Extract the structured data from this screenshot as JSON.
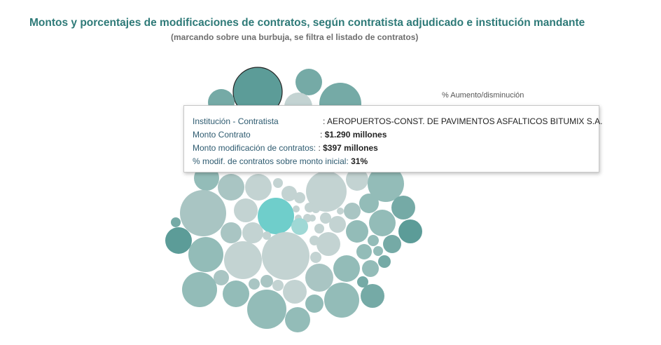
{
  "title": "Montos y porcentajes de modificaciones de contratos, según contratista adjudicado e institución mandante",
  "subtitle": "(marcando sobre una burbuja, se filtra el listado de contratos)",
  "legend": {
    "title": "% Aumento/disminución"
  },
  "colors": {
    "teal_dark": "#5c9c98",
    "teal": "#75aaa6",
    "teal_mid": "#93bcb8",
    "gray_teal": "#a9c5c3",
    "gray_light": "#c3d3d2",
    "highlight": "#6fcecb",
    "highlight_light": "#9fd8d5",
    "title": "#2e7a78"
  },
  "tooltip": {
    "row1_label": "Institución - Contratista",
    "row1_sep": ":",
    "row1_value": "AEROPUERTOS-CONST. DE PAVIMENTOS ASFALTICOS BITUMIX S.A.",
    "row2_label": "Monto Contrato",
    "row2_sep": ":",
    "row2_value": "$1.290 millones",
    "row3_label": "Monto modificación de contratos:",
    "row3_sep": ":",
    "row3_value": "$397 millones",
    "row4_label": "% modif. de contratos sobre monto inicial:",
    "row4_value": "31%"
  },
  "chart_data": {
    "type": "bubble",
    "selected": {
      "label": "AEROPUERTOS-CONST. DE PAVIMENTOS ASFALTICOS BITUMIX S.A.",
      "monto_contrato_millones": 1290,
      "monto_modificacion_millones": 397,
      "pct_modificacion": 31
    }
  }
}
